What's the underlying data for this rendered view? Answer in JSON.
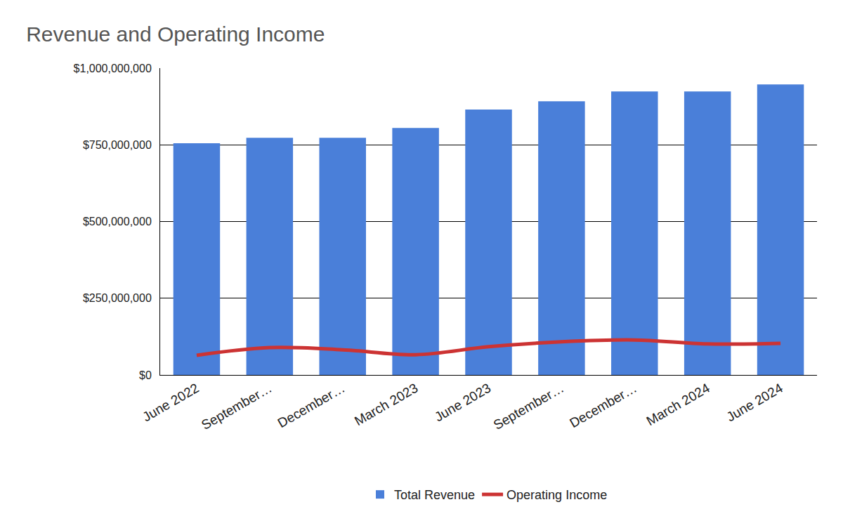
{
  "chart_data": {
    "type": "bar",
    "title": "Revenue and Operating Income",
    "categories": [
      "June 2022",
      "September…",
      "December…",
      "March 2023",
      "June 2023",
      "September…",
      "December…",
      "March 2024",
      "June 2024"
    ],
    "series": [
      {
        "name": "Total Revenue",
        "type": "bar",
        "color": "#4a7fd9",
        "values": [
          755000000,
          773000000,
          773000000,
          805000000,
          865000000,
          892000000,
          924000000,
          924000000,
          947000000
        ]
      },
      {
        "name": "Operating Income",
        "type": "line",
        "color": "#cc3333",
        "line_style": "solid",
        "values": [
          64000000,
          89000000,
          82000000,
          66000000,
          92000000,
          108000000,
          114000000,
          101000000,
          103000000
        ]
      }
    ],
    "ylim": [
      0,
      1000000000
    ],
    "yticks": [
      {
        "value": 0,
        "label": "$0"
      },
      {
        "value": 250000000,
        "label": "$250,000,000"
      },
      {
        "value": 500000000,
        "label": "$500,000,000"
      },
      {
        "value": 750000000,
        "label": "$750,000,000"
      },
      {
        "value": 1000000000,
        "label": "$1,000,000,000"
      }
    ],
    "grid": true,
    "legend": "bottom"
  }
}
